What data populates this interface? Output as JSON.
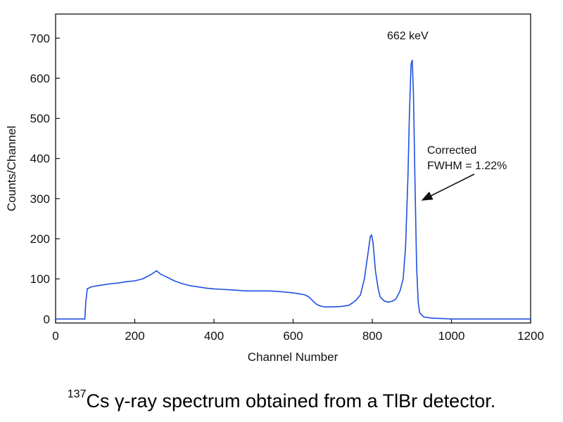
{
  "chart_data": {
    "type": "line",
    "xlabel": "Channel Number",
    "ylabel": "Counts/Channel",
    "xlim": [
      0,
      1200
    ],
    "ylim": [
      -10,
      760
    ],
    "xticks": [
      0,
      200,
      400,
      600,
      800,
      1000,
      1200
    ],
    "yticks": [
      0,
      100,
      200,
      300,
      400,
      500,
      600,
      700
    ],
    "grid": false,
    "legend": "none",
    "series": [
      {
        "color": "#1f4fe0",
        "x": [
          0,
          74,
          76,
          80,
          90,
          100,
          120,
          140,
          160,
          180,
          200,
          220,
          240,
          255,
          265,
          280,
          300,
          320,
          340,
          360,
          380,
          400,
          420,
          450,
          480,
          510,
          540,
          570,
          600,
          620,
          630,
          640,
          650,
          660,
          670,
          680,
          700,
          720,
          740,
          750,
          760,
          770,
          780,
          790,
          795,
          798,
          802,
          808,
          815,
          820,
          830,
          840,
          850,
          860,
          870,
          878,
          884,
          890,
          894,
          898,
          901,
          904,
          908,
          912,
          916,
          920,
          930,
          950,
          980,
          1000,
          1050,
          1100,
          1200
        ],
        "y": [
          0,
          0,
          40,
          75,
          80,
          82,
          85,
          88,
          90,
          93,
          95,
          100,
          110,
          120,
          112,
          105,
          95,
          88,
          83,
          80,
          77,
          75,
          74,
          72,
          70,
          70,
          70,
          68,
          65,
          62,
          60,
          55,
          45,
          36,
          32,
          30,
          30,
          31,
          34,
          40,
          48,
          60,
          100,
          170,
          205,
          210,
          190,
          120,
          75,
          55,
          45,
          42,
          44,
          50,
          70,
          100,
          180,
          350,
          520,
          635,
          645,
          560,
          330,
          130,
          40,
          15,
          5,
          2,
          1,
          0,
          0,
          0,
          0
        ]
      }
    ],
    "annotations": [
      {
        "text": "662 keV"
      },
      {
        "line1": "Corrected",
        "line2": "FWHM = 1.22%"
      }
    ]
  },
  "caption": {
    "superscript": "137",
    "text": "Cs γ-ray spectrum obtained from a TlBr detector."
  }
}
